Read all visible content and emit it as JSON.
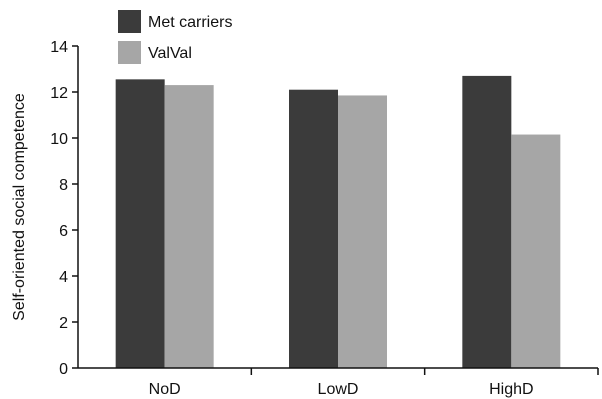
{
  "chart_data": {
    "type": "bar",
    "categories": [
      "NoD",
      "LowD",
      "HighD"
    ],
    "series": [
      {
        "name": "Met carriers",
        "values": [
          12.55,
          12.1,
          12.7
        ],
        "color": "#3b3b3b"
      },
      {
        "name": "ValVal",
        "values": [
          12.3,
          11.85,
          10.15
        ],
        "color": "#a6a6a6"
      }
    ],
    "xlabel": "",
    "ylabel": "Self-oriented social competence",
    "ylim": [
      0,
      14
    ],
    "yticks": [
      0,
      2,
      4,
      6,
      8,
      10,
      12,
      14
    ],
    "grid": false,
    "legend_position": "top-left"
  }
}
